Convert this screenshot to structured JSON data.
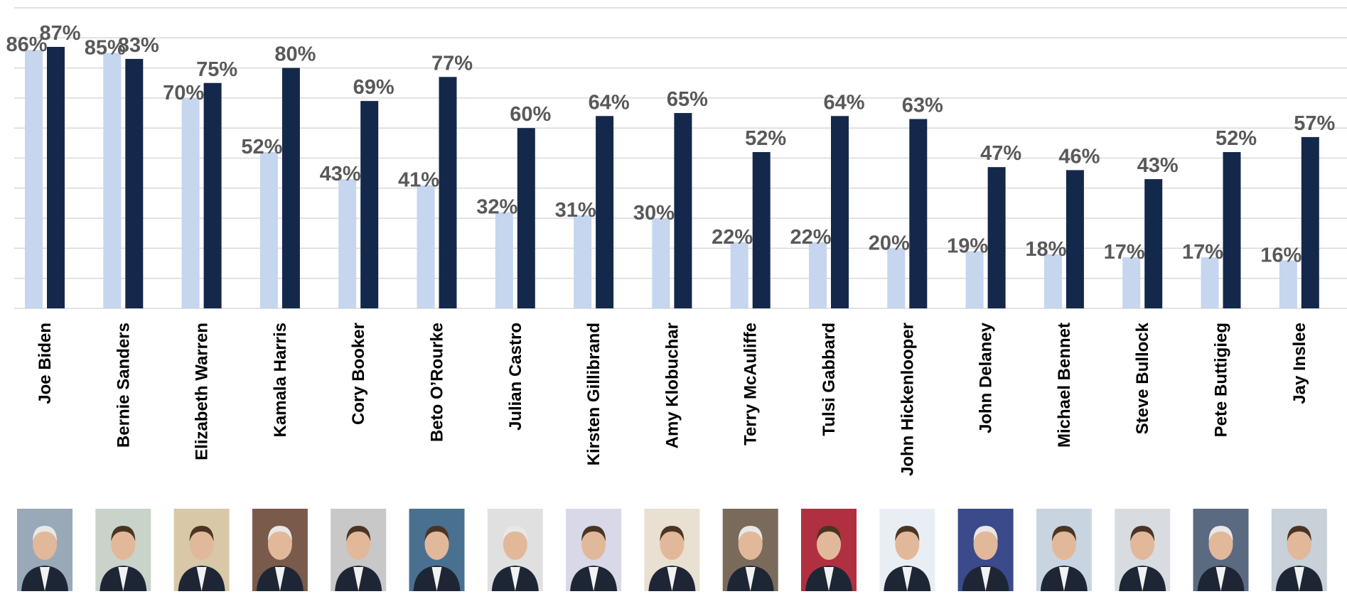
{
  "chart_data": {
    "type": "bar",
    "categories": [
      "Joe Biden",
      "Bernie Sanders",
      "Elizabeth Warren",
      "Kamala Harris",
      "Cory Booker",
      "Beto O’Rourke",
      "Julian Castro",
      "Kirsten Gillibrand",
      "Amy Klobuchar",
      "Terry McAuliffe",
      "Tulsi Gabbard",
      "John Hickenlooper",
      "John Delaney",
      "Michael Bennet",
      "Steve Bullock",
      "Pete Buttigieg",
      "Jay Inslee"
    ],
    "series": [
      {
        "color": "#c5d6ee",
        "values": [
          86,
          85,
          70,
          52,
          43,
          41,
          32,
          31,
          30,
          22,
          22,
          20,
          19,
          18,
          17,
          17,
          16
        ],
        "value_labels": [
          "86%",
          "85%",
          "70%",
          "52%",
          "43%",
          "41%",
          "32%",
          "31%",
          "30%",
          "22%",
          "22%",
          "20%",
          "19%",
          "18%",
          "17%",
          "17%",
          "16%"
        ]
      },
      {
        "color": "#14284b",
        "values": [
          87,
          83,
          75,
          80,
          69,
          77,
          60,
          64,
          65,
          52,
          64,
          63,
          47,
          46,
          43,
          52,
          57
        ],
        "value_labels": [
          "87%",
          "83%",
          "75%",
          "80%",
          "69%",
          "77%",
          "60%",
          "64%",
          "65%",
          "52%",
          "64%",
          "63%",
          "47%",
          "46%",
          "43%",
          "52%",
          "57%"
        ]
      }
    ],
    "ylim": [
      0,
      100
    ],
    "yticks": [
      0,
      10,
      20,
      30,
      40,
      50,
      60,
      70,
      80,
      90,
      100
    ],
    "grid": true
  }
}
